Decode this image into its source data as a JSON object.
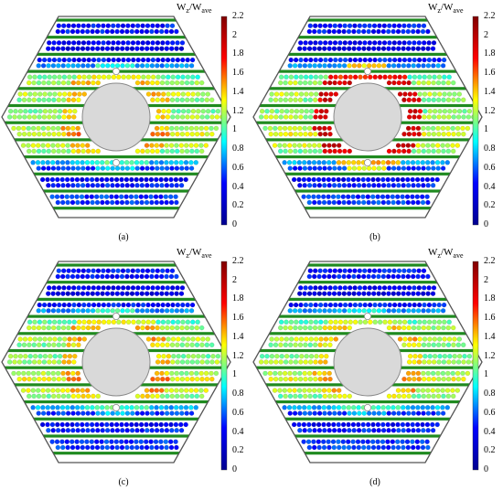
{
  "figure": {
    "colorbar": {
      "title_main": "W",
      "title_sub1": "z",
      "title_sep": "/W",
      "title_sub2": "ave",
      "ticks": [
        "2.2",
        "2",
        "1.8",
        "1.6",
        "1.4",
        "1.2",
        "1",
        "0.8",
        "0.6",
        "0.4",
        "0.2",
        "0"
      ],
      "min": 0,
      "max": 2.2,
      "colormap": [
        "#00008f",
        "#0000ff",
        "#00ffff",
        "#ffff00",
        "#ff0000",
        "#800000"
      ]
    },
    "colors": {
      "hexagon_edge": "#555555",
      "strip": "#1f8a1f",
      "center_fill": "#d9d9d9",
      "center_edge": "#8a8a8a"
    },
    "panels": [
      {
        "id": "a",
        "caption": "(a)",
        "peak_level": 1.5
      },
      {
        "id": "b",
        "caption": "(b)",
        "peak_level": 2.0
      },
      {
        "id": "c",
        "caption": "(c)",
        "peak_level": 1.5
      },
      {
        "id": "d",
        "caption": "(d)",
        "peak_level": 1.45
      }
    ]
  }
}
